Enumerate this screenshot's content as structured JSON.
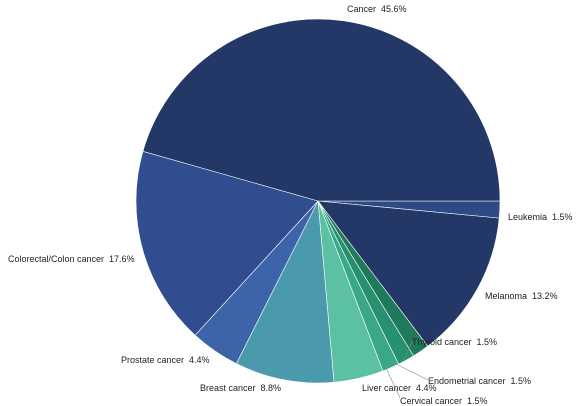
{
  "chart_data": {
    "type": "pie",
    "start_position": "3 o'clock, clockwise with first slice",
    "slices": [
      {
        "label": "Leukemia",
        "value": 1.5,
        "value_text": "1.5%",
        "color": "#2e4a86"
      },
      {
        "label": "Melanoma",
        "value": 13.2,
        "value_text": "13.2%",
        "color": "#233866"
      },
      {
        "label": "Thyroid cancer",
        "value": 1.5,
        "value_text": "1.5%",
        "color": "#1f7a5c"
      },
      {
        "label": "Endometrial cancer",
        "value": 1.5,
        "value_text": "1.5%",
        "color": "#279070"
      },
      {
        "label": "Cervical cancer",
        "value": 1.5,
        "value_text": "1.5%",
        "color": "#3aa886"
      },
      {
        "label": "Liver cancer",
        "value": 4.4,
        "value_text": "4.4%",
        "color": "#5cc0a2"
      },
      {
        "label": "Breast cancer",
        "value": 8.8,
        "value_text": "8.8%",
        "color": "#4a99ad"
      },
      {
        "label": "Prostate cancer",
        "value": 4.4,
        "value_text": "4.4%",
        "color": "#3d63a8"
      },
      {
        "label": "Colorectal/Colon cancer",
        "value": 17.6,
        "value_text": "17.6%",
        "color": "#2f4d8f"
      },
      {
        "label": "Cancer",
        "value": 45.6,
        "value_text": "45.6%",
        "color": "#233866"
      }
    ]
  }
}
